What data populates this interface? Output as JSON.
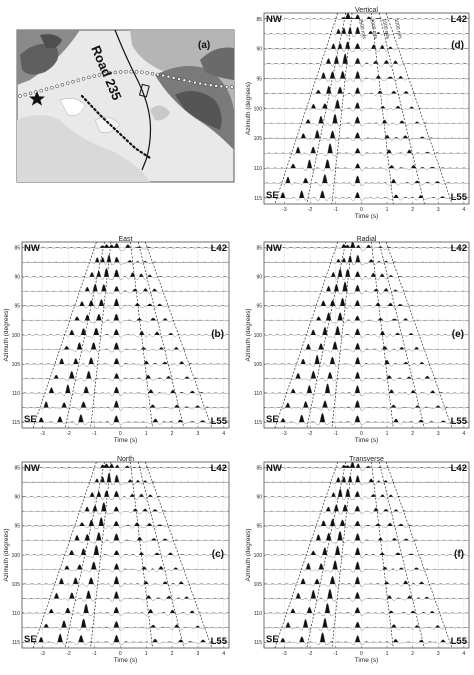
{
  "figure": {
    "map_panel": {
      "letter": "(a)",
      "road_label": "Road 235"
    },
    "panels": [
      {
        "id": "d",
        "letter": "(d)",
        "title": "Vertical",
        "show_velocity_labels": true
      },
      {
        "id": "b",
        "letter": "(b)",
        "title": "East",
        "show_velocity_labels": false
      },
      {
        "id": "e",
        "letter": "(e)",
        "title": "Radial",
        "show_velocity_labels": false
      },
      {
        "id": "c",
        "letter": "(c)",
        "title": "North",
        "show_velocity_labels": false
      },
      {
        "id": "f",
        "letter": "(f)",
        "title": "Transverse",
        "show_velocity_labels": false
      }
    ],
    "corner_labels": {
      "top_left": "NW",
      "top_right": "L42",
      "bottom_left": "SE",
      "bottom_right": "L55"
    },
    "y_axis_label": "Azimuth (degrees)",
    "x_axis_label": "Time (s)",
    "y_ticks": [
      "85",
      "90",
      "95",
      "100",
      "105",
      "110",
      "115"
    ],
    "x_ticks": [
      "-3",
      "-2",
      "-1",
      "0",
      "1",
      "2",
      "3",
      "4"
    ],
    "velocity_labels": [
      "2500 m/s",
      "2000 m/s",
      "1500 m/s",
      "1000 m/s"
    ]
  },
  "chart_data": [
    {
      "type": "line",
      "title": "Vertical",
      "xlabel": "Time (s)",
      "ylabel": "Azimuth (degrees)",
      "xlim": [
        -3.8,
        4.2
      ],
      "ylim": [
        84,
        116
      ],
      "trace_azimuths": [
        85,
        87.5,
        90,
        92.5,
        95,
        97.5,
        100,
        102.5,
        105,
        107.5,
        110,
        112.5,
        115
      ],
      "moveout_velocities_m_s": [
        2500,
        2000,
        1500,
        1000
      ]
    }
  ]
}
